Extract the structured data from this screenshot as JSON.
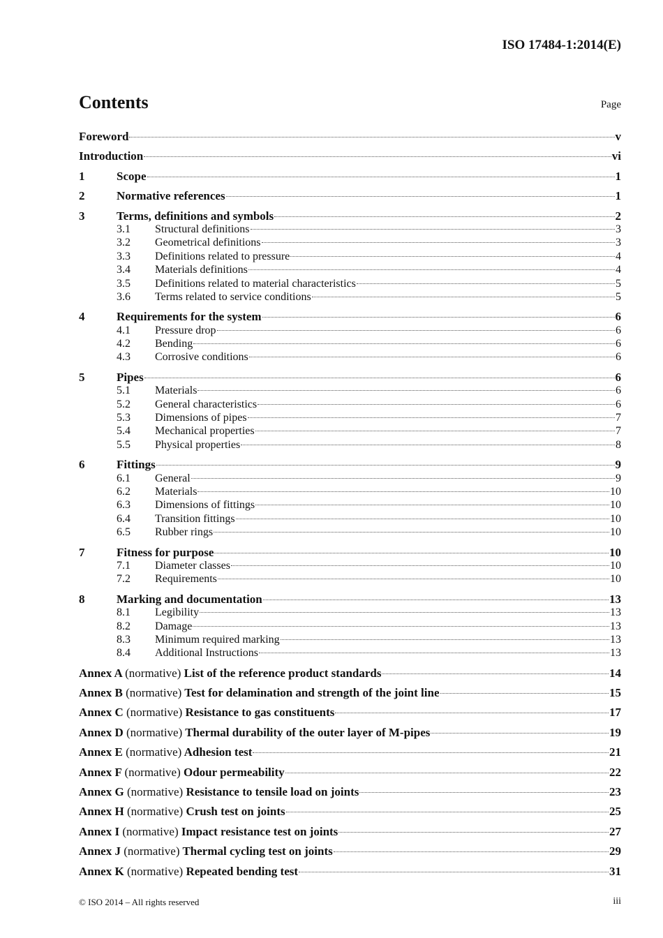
{
  "header": {
    "doc_id": "ISO 17484-1:2014(E)"
  },
  "contents": {
    "title": "Contents",
    "page_label": "Page"
  },
  "front": [
    {
      "title": "Foreword",
      "page": "v"
    },
    {
      "title": "Introduction",
      "page": "vi"
    }
  ],
  "sections": [
    {
      "num": "1",
      "title": "Scope",
      "page": "1",
      "subs": []
    },
    {
      "num": "2",
      "title": "Normative references",
      "page": "1",
      "subs": []
    },
    {
      "num": "3",
      "title": "Terms, definitions and symbols",
      "page": "2",
      "subs": [
        {
          "num": "3.1",
          "title": "Structural definitions",
          "page": "3"
        },
        {
          "num": "3.2",
          "title": "Geometrical definitions",
          "page": "3"
        },
        {
          "num": "3.3",
          "title": "Definitions related to pressure",
          "page": "4"
        },
        {
          "num": "3.4",
          "title": "Materials definitions",
          "page": "4"
        },
        {
          "num": "3.5",
          "title": "Definitions related to material characteristics",
          "page": "5"
        },
        {
          "num": "3.6",
          "title": "Terms related to service conditions",
          "page": "5"
        }
      ]
    },
    {
      "num": "4",
      "title": "Requirements for the system",
      "page": "6",
      "subs": [
        {
          "num": "4.1",
          "title": "Pressure drop",
          "page": "6"
        },
        {
          "num": "4.2",
          "title": "Bending",
          "page": "6"
        },
        {
          "num": "4.3",
          "title": "Corrosive conditions",
          "page": "6"
        }
      ]
    },
    {
      "num": "5",
      "title": "Pipes",
      "page": "6",
      "subs": [
        {
          "num": "5.1",
          "title": "Materials",
          "page": "6"
        },
        {
          "num": "5.2",
          "title": "General characteristics",
          "page": "6"
        },
        {
          "num": "5.3",
          "title": "Dimensions of pipes",
          "page": "7"
        },
        {
          "num": "5.4",
          "title": "Mechanical properties",
          "page": "7"
        },
        {
          "num": "5.5",
          "title": "Physical properties",
          "page": "8"
        }
      ]
    },
    {
      "num": "6",
      "title": "Fittings",
      "page": "9",
      "subs": [
        {
          "num": "6.1",
          "title": "General",
          "page": "9"
        },
        {
          "num": "6.2",
          "title": "Materials",
          "page": "10"
        },
        {
          "num": "6.3",
          "title": "Dimensions of fittings",
          "page": "10"
        },
        {
          "num": "6.4",
          "title": "Transition fittings",
          "page": "10"
        },
        {
          "num": "6.5",
          "title": "Rubber rings",
          "page": "10"
        }
      ]
    },
    {
      "num": "7",
      "title": "Fitness for purpose",
      "page": "10",
      "subs": [
        {
          "num": "7.1",
          "title": "Diameter classes",
          "page": "10"
        },
        {
          "num": "7.2",
          "title": "Requirements",
          "page": "10"
        }
      ]
    },
    {
      "num": "8",
      "title": "Marking and documentation",
      "page": "13",
      "subs": [
        {
          "num": "8.1",
          "title": "Legibility",
          "page": "13"
        },
        {
          "num": "8.2",
          "title": "Damage",
          "page": "13"
        },
        {
          "num": "8.3",
          "title": "Minimum required marking",
          "page": "13"
        },
        {
          "num": "8.4",
          "title": "Additional Instructions",
          "page": "13"
        }
      ]
    }
  ],
  "annexes": [
    {
      "label": "Annex A",
      "type": "(normative)",
      "title": "List of the reference product standards",
      "page": "14"
    },
    {
      "label": "Annex B",
      "type": "(normative)",
      "title": "Test for delamination and strength of the joint line",
      "page": "15"
    },
    {
      "label": "Annex C",
      "type": "(normative)",
      "title": "Resistance to gas constituents",
      "page": "17"
    },
    {
      "label": "Annex D",
      "type": "(normative)",
      "title": "Thermal durability of the outer layer of M-pipes",
      "page": "19"
    },
    {
      "label": "Annex E",
      "type": "(normative)",
      "title": "Adhesion test",
      "page": "21"
    },
    {
      "label": "Annex F",
      "type": "(normative)",
      "title": "Odour permeability",
      "page": "22"
    },
    {
      "label": "Annex G",
      "type": "(normative)",
      "title": "Resistance to tensile load on joints",
      "page": "23"
    },
    {
      "label": "Annex H",
      "type": "(normative)",
      "title": "Crush test on joints",
      "page": "25"
    },
    {
      "label": "Annex I",
      "type": "(normative)",
      "title": "Impact resistance test on joints",
      "page": "27"
    },
    {
      "label": "Annex J",
      "type": "(normative)",
      "title": "Thermal cycling test on joints",
      "page": "29"
    },
    {
      "label": "Annex K",
      "type": "(normative)",
      "title": "Repeated bending test",
      "page": "31"
    }
  ],
  "footer": {
    "copyright": "© ISO 2014 – All rights reserved",
    "page": "iii"
  }
}
